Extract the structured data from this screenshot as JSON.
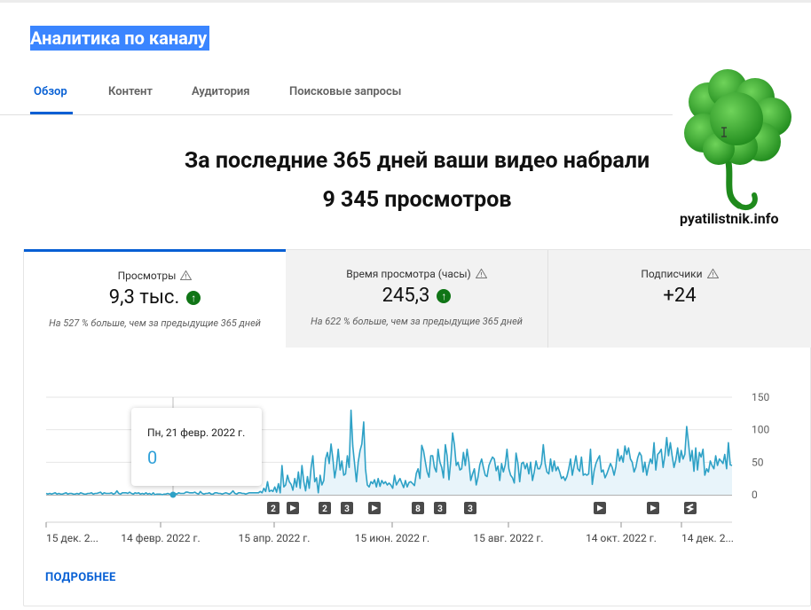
{
  "page_title": "Аналитика по каналу",
  "tabs": [
    "Обзор",
    "Контент",
    "Аудитория",
    "Поисковые запросы"
  ],
  "headline": {
    "line1": "За последние 365 дней ваши видео набрали",
    "line2": "9 345 просмотров"
  },
  "watermark": "pyatilistnik.info",
  "metrics": [
    {
      "label": "Просмотры",
      "value": "9,3 тыс.",
      "sub": "На 527 % больше, чем за предыдущие 365 дней"
    },
    {
      "label": "Время просмотра (часы)",
      "value": "245,3",
      "sub": "На 622 % больше, чем за предыдущие 365 дней"
    },
    {
      "label": "Подписчики",
      "value": "+24",
      "sub": ""
    }
  ],
  "tooltip": {
    "date": "Пн, 21 февр. 2022 г.",
    "value": "0"
  },
  "more_link": "ПОДРОБНЕЕ",
  "colors": {
    "accent": "#065fd4",
    "line": "#2ea1c6",
    "up": "#107516"
  },
  "chart_data": {
    "type": "area",
    "ylim": [
      0,
      150
    ],
    "yticks": [
      "150",
      "100",
      "50",
      "0"
    ],
    "xticks": [
      "15 дек. 2...",
      "14 февр. 2022 г.",
      "15 апр. 2022 г.",
      "15 июн. 2022 г.",
      "15 авг. 2022 г.",
      "14 окт. 2022 г.",
      "14 дек. 2..."
    ],
    "markers": [
      "2",
      "play",
      "2",
      "3",
      "play",
      "8",
      "3",
      "3",
      "play",
      "play",
      "shorts"
    ],
    "values": [
      2,
      1,
      2,
      1,
      2,
      3,
      1,
      2,
      1,
      1,
      2,
      3,
      1,
      2,
      2,
      1,
      1,
      2,
      1,
      3,
      2,
      1,
      1,
      2,
      2,
      3,
      1,
      2,
      2,
      3,
      4,
      1,
      3,
      2,
      2,
      2,
      3,
      1,
      2,
      6,
      2,
      1,
      3,
      3,
      3,
      2,
      4,
      2,
      1,
      3,
      2,
      3,
      1,
      2,
      1,
      3,
      1,
      2,
      0,
      3,
      0,
      1,
      1,
      1,
      0,
      1,
      1,
      2,
      1,
      1,
      3,
      2,
      1,
      3,
      2,
      2,
      2,
      4,
      4,
      3,
      3,
      3,
      4,
      2,
      1,
      5,
      2,
      1,
      2,
      2,
      3,
      1,
      1,
      3,
      3,
      2,
      2,
      1,
      2,
      3,
      2,
      1,
      3,
      6,
      2,
      1,
      3,
      3,
      2,
      2,
      1,
      2,
      3,
      3,
      3,
      3,
      3,
      3,
      5,
      3,
      10,
      5,
      20,
      5,
      7,
      5,
      12,
      4,
      17,
      3,
      45,
      12,
      15,
      30,
      20,
      16,
      7,
      25,
      12,
      35,
      10,
      45,
      20,
      6,
      28,
      10,
      42,
      60,
      20,
      26,
      3,
      30,
      15,
      22,
      55,
      65,
      48,
      78,
      56,
      26,
      43,
      70,
      38,
      52,
      30,
      32,
      60,
      42,
      130,
      75,
      48,
      20,
      50,
      68,
      78,
      112,
      40,
      15,
      12,
      20,
      17,
      23,
      12,
      25,
      13,
      22,
      17,
      20,
      15,
      18,
      15,
      10,
      30,
      15,
      20,
      25,
      18,
      11,
      22,
      12,
      19,
      20,
      17,
      14,
      33,
      40,
      25,
      76,
      67,
      50,
      35,
      27,
      60,
      60,
      42,
      35,
      70,
      50,
      42,
      26,
      77,
      60,
      23,
      52,
      95,
      77,
      45,
      50,
      38,
      40,
      65,
      45,
      70,
      50,
      22,
      32,
      40,
      15,
      27,
      46,
      55,
      42,
      30,
      28,
      45,
      52,
      58,
      55,
      37,
      44,
      22,
      48,
      35,
      46,
      70,
      40,
      30,
      26,
      18,
      64,
      48,
      20,
      48,
      50,
      40,
      48,
      32,
      50,
      22,
      35,
      52,
      40,
      40,
      48,
      77,
      48,
      35,
      32,
      55,
      36,
      52,
      37,
      43,
      35,
      25,
      28,
      22,
      28,
      40,
      55,
      30,
      45,
      60,
      40,
      36,
      58,
      30,
      32,
      30,
      32,
      70,
      16,
      37,
      48,
      55,
      60,
      35,
      38,
      26,
      32,
      40,
      48,
      42,
      30,
      43,
      70,
      52,
      60,
      50,
      75,
      62,
      72,
      55,
      50,
      35,
      42,
      57,
      65,
      60,
      35,
      50,
      30,
      44,
      55,
      48,
      80,
      38,
      62,
      65,
      70,
      42,
      60,
      88,
      60,
      80,
      60,
      42,
      53,
      72,
      50,
      68,
      55,
      62,
      105,
      80,
      52,
      68,
      36,
      72,
      38,
      65,
      58,
      70,
      30,
      40,
      35,
      52,
      45,
      40,
      60,
      45,
      55,
      52,
      48,
      62,
      40,
      80,
      46,
      45
    ]
  }
}
